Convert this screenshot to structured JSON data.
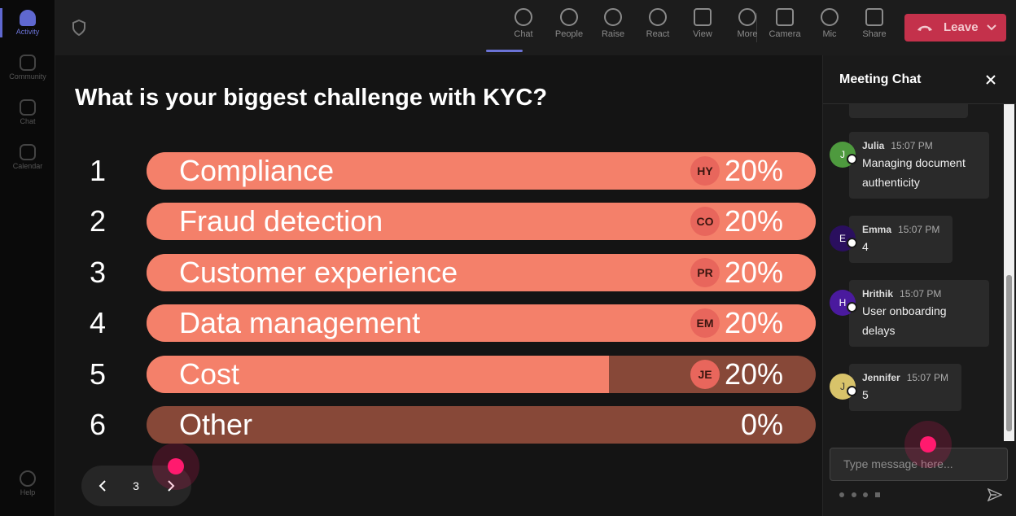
{
  "sidebar": {
    "items": [
      "Activity",
      "Community",
      "Chat",
      "Calendar"
    ],
    "help": "Help"
  },
  "top_bar": {
    "buttons": [
      "Chat",
      "People",
      "Raise",
      "React",
      "View",
      "More",
      "Camera",
      "Mic",
      "Share"
    ],
    "leave": "Leave"
  },
  "poll": {
    "question": "What is your biggest challenge with KYC?",
    "options": [
      {
        "number": 1,
        "label": "Compliance",
        "voter": "HY",
        "percent": "20%"
      },
      {
        "number": 2,
        "label": "Fraud detection",
        "voter": "CO",
        "percent": "20%"
      },
      {
        "number": 3,
        "label": "Customer experience",
        "voter": "PR",
        "percent": "20%"
      },
      {
        "number": 4,
        "label": "Data management",
        "voter": "EM",
        "percent": "20%"
      },
      {
        "number": 5,
        "label": "Cost",
        "voter": "JE",
        "percent": "20%"
      },
      {
        "number": 6,
        "label": "Other",
        "percent": "0%"
      }
    ],
    "page": 3
  },
  "chat": {
    "title": "Meeting Chat",
    "messages": [
      {
        "initial": "J",
        "name": "Julia",
        "time": "15:07 PM",
        "text": "Managing document authenticity"
      },
      {
        "initial": "E",
        "name": "Emma",
        "time": "15:07 PM",
        "text": "4"
      },
      {
        "initial": "H",
        "name": "Hrithik",
        "time": "15:07 PM",
        "text": "User onboarding delays"
      },
      {
        "initial": "J",
        "name": "Jennifer",
        "time": "15:07 PM",
        "text": "5"
      }
    ],
    "placeholder": "Type message here..."
  }
}
